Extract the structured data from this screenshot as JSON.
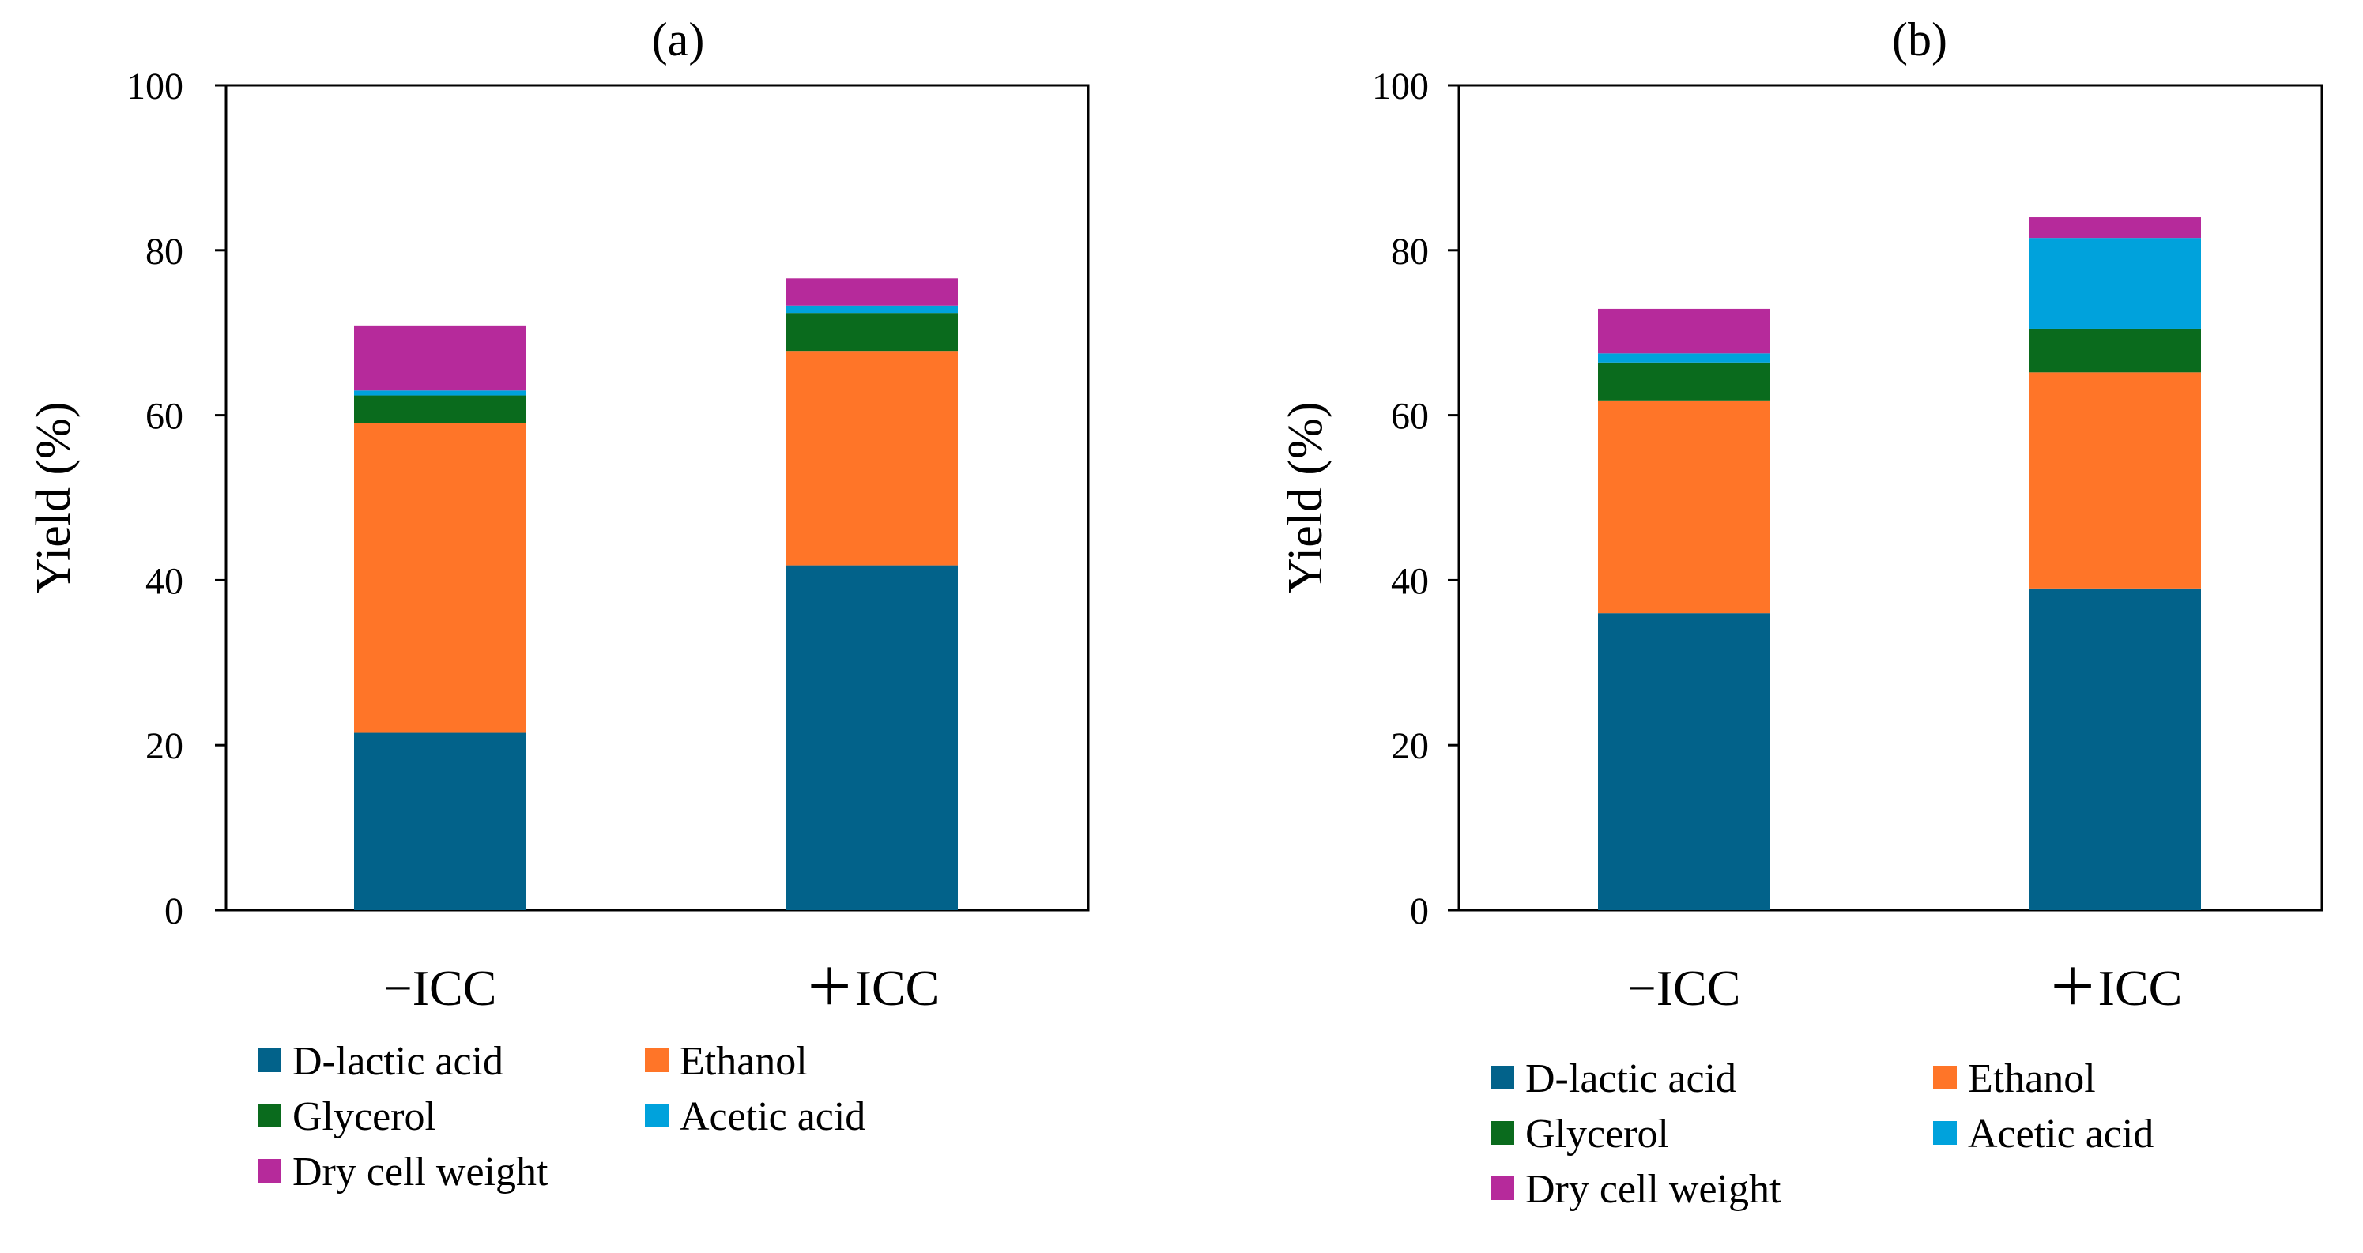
{
  "chart_data": [
    {
      "type": "bar",
      "stacked": true,
      "title": "(a)",
      "ylabel": "Yield (%)",
      "xlabel": "",
      "ylim": [
        0,
        100
      ],
      "yticks": [
        0,
        20,
        40,
        60,
        80,
        100
      ],
      "categories": [
        "−ICC",
        "＋ICC"
      ],
      "series": [
        {
          "name": "D-lactic acid",
          "color": "#02628a",
          "values": [
            21.5,
            41.8
          ]
        },
        {
          "name": "Ethanol",
          "color": "#ff7528",
          "values": [
            37.6,
            26.0
          ]
        },
        {
          "name": "Glycerol",
          "color": "#0a6b1d",
          "values": [
            3.3,
            4.6
          ]
        },
        {
          "name": "Acetic acid",
          "color": "#00a2dc",
          "values": [
            0.6,
            0.9
          ]
        },
        {
          "name": "Dry cell weight",
          "color": "#b62a9b",
          "values": [
            7.8,
            3.3
          ]
        }
      ],
      "legend_position": "bottom"
    },
    {
      "type": "bar",
      "stacked": true,
      "title": "(b)",
      "ylabel": "Yield (%)",
      "xlabel": "",
      "ylim": [
        0,
        100
      ],
      "yticks": [
        0,
        20,
        40,
        60,
        80,
        100
      ],
      "categories": [
        "−ICC",
        "＋ICC"
      ],
      "series": [
        {
          "name": "D-lactic acid",
          "color": "#02628a",
          "values": [
            36.0,
            39.0
          ]
        },
        {
          "name": "Ethanol",
          "color": "#ff7528",
          "values": [
            25.8,
            26.2
          ]
        },
        {
          "name": "Glycerol",
          "color": "#0a6b1d",
          "values": [
            4.6,
            5.3
          ]
        },
        {
          "name": "Acetic acid",
          "color": "#00a2dc",
          "values": [
            1.1,
            11.0
          ]
        },
        {
          "name": "Dry cell weight",
          "color": "#b62a9b",
          "values": [
            5.4,
            2.5
          ]
        }
      ],
      "legend_position": "bottom"
    }
  ]
}
